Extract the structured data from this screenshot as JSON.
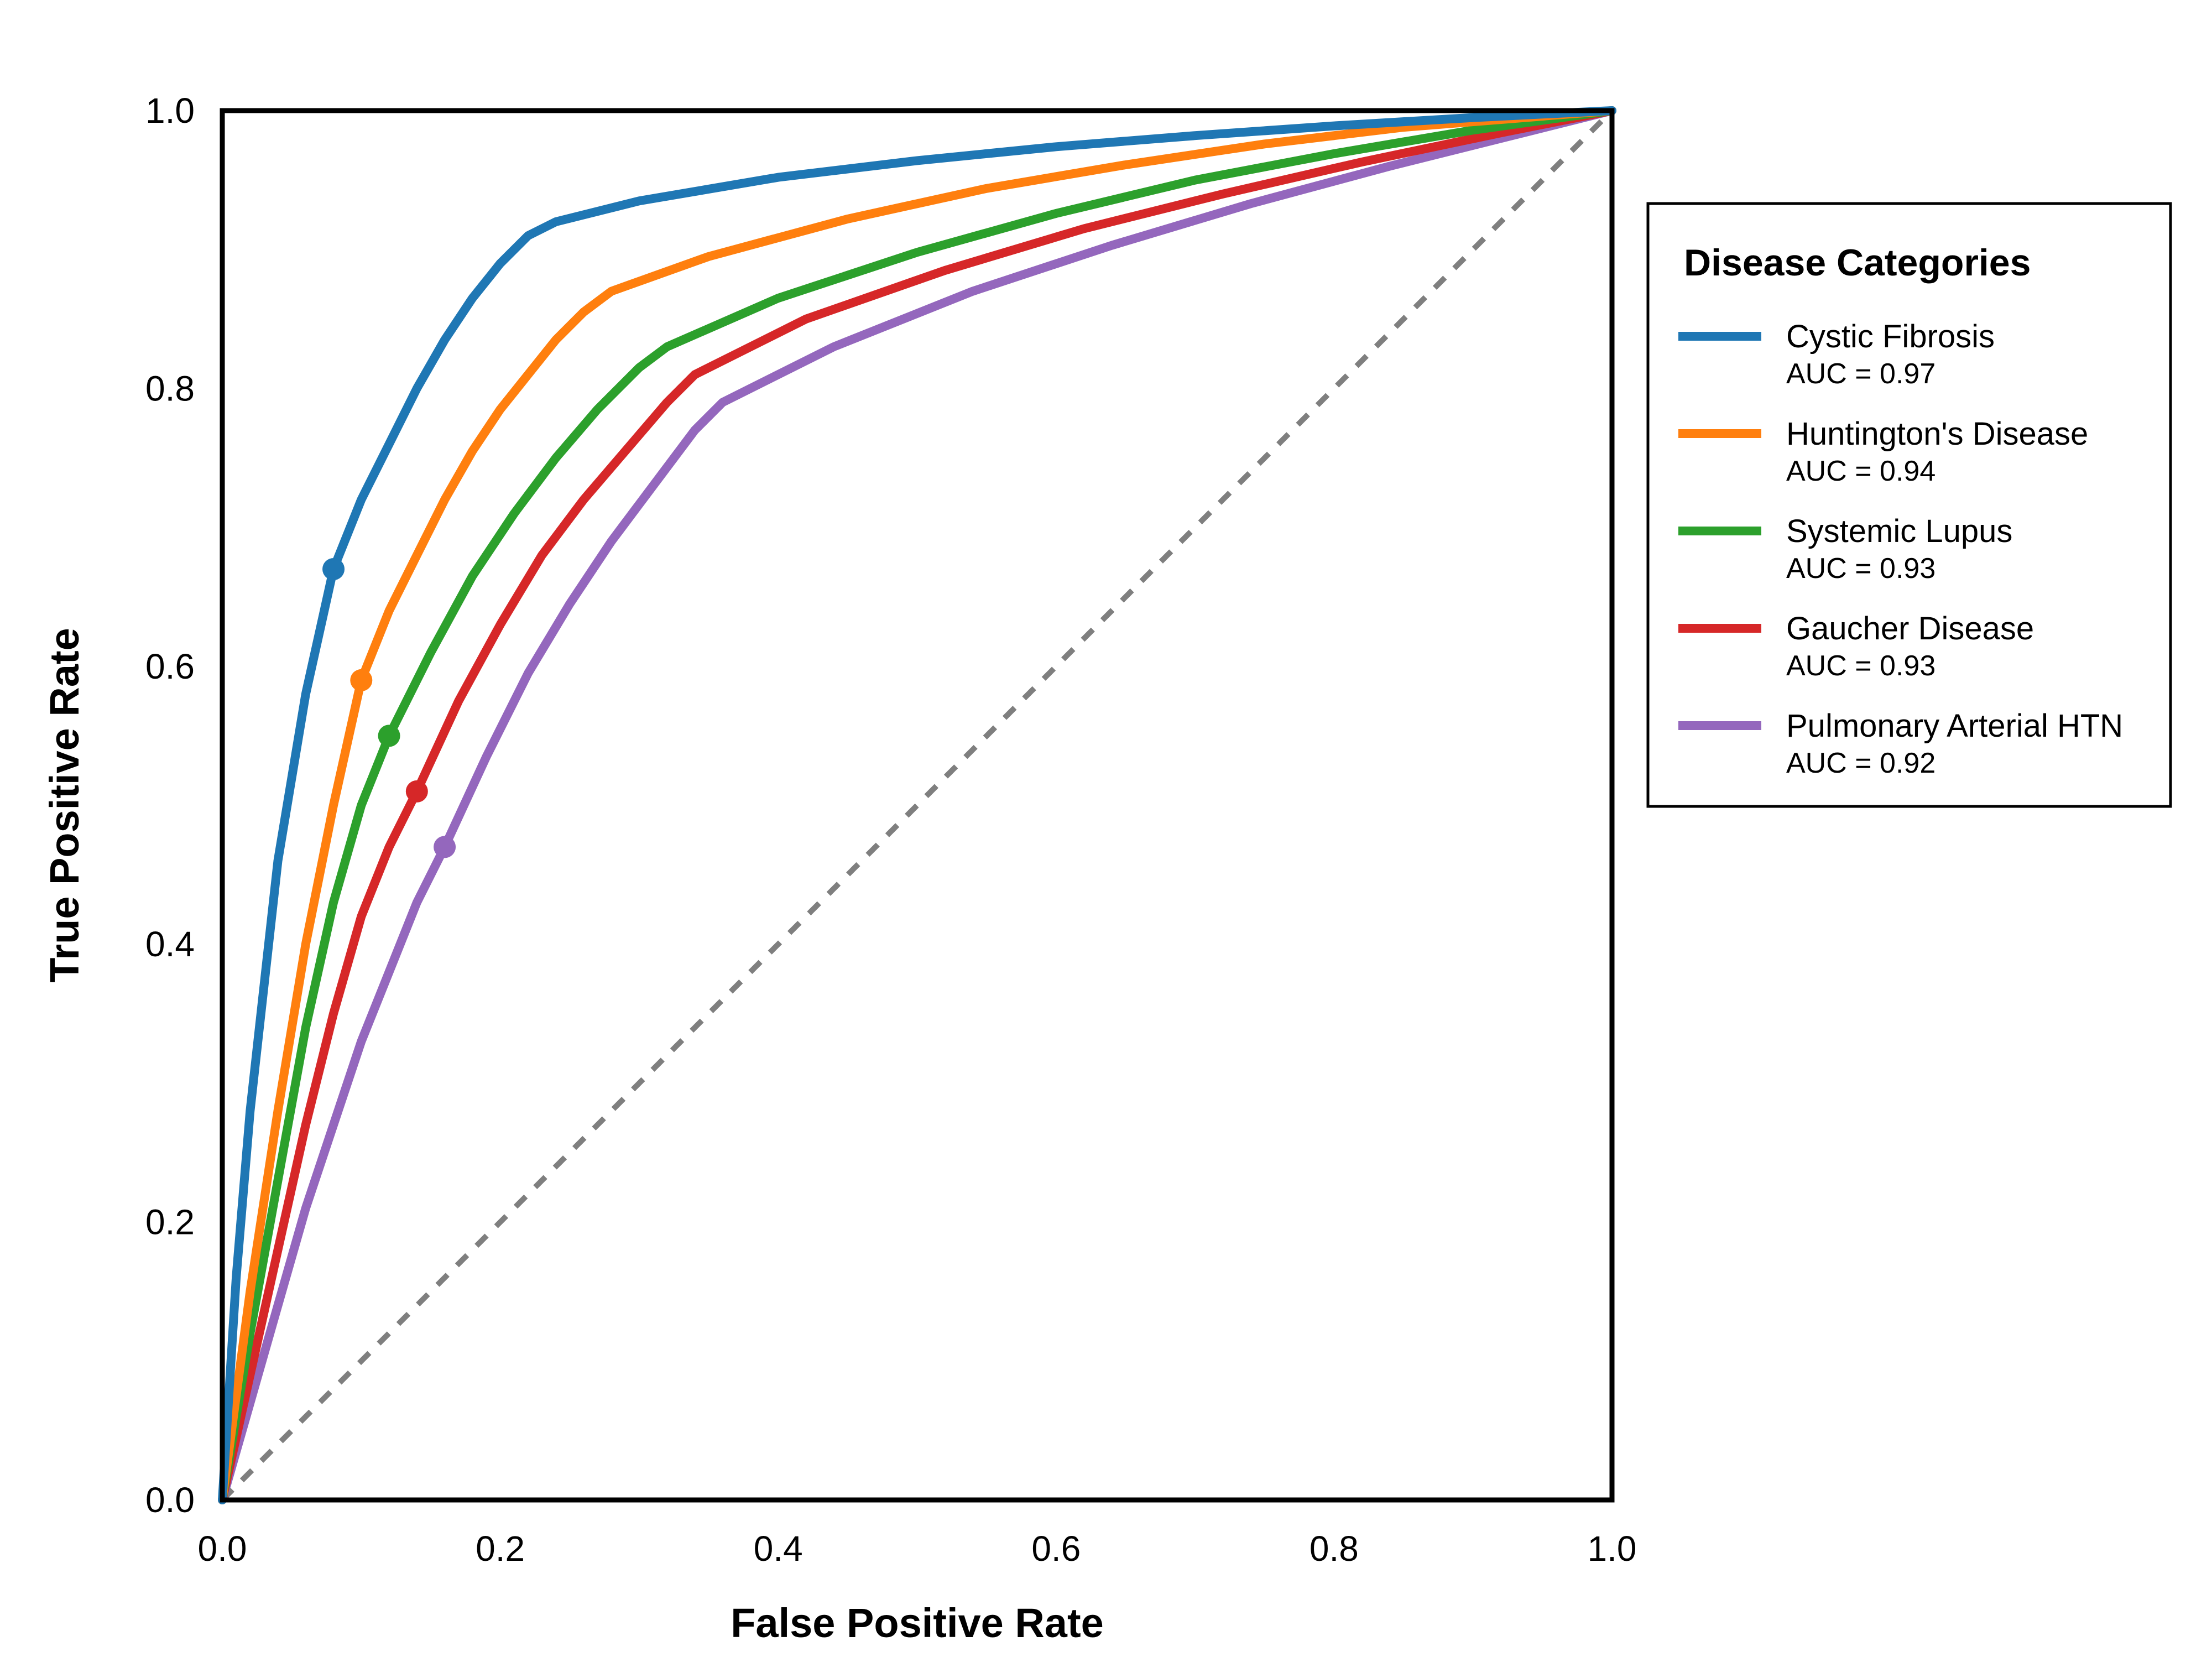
{
  "chart_data": {
    "type": "line",
    "title": "",
    "xlabel": "False Positive Rate",
    "ylabel": "True Positive Rate",
    "xlim": [
      0,
      1
    ],
    "ylim": [
      0,
      1
    ],
    "grid": false,
    "xticks": [
      "0.0",
      "0.2",
      "0.4",
      "0.6",
      "0.8",
      "1.0"
    ],
    "yticks": [
      "0.0",
      "0.2",
      "0.4",
      "0.6",
      "0.8",
      "1.0"
    ],
    "tick_values": [
      0,
      0.2,
      0.4,
      0.6,
      0.8,
      1.0
    ],
    "legend": {
      "title": "Disease Categories",
      "placement": "right-outside"
    },
    "reference_line": {
      "name": "chance-diagonal",
      "x": [
        0,
        1
      ],
      "y": [
        0,
        1
      ],
      "style": "dashed",
      "color": "#7f7f7f"
    },
    "series": [
      {
        "name": "Cystic Fibrosis",
        "auc_label": "AUC = 0.97",
        "color": "#1f77b4",
        "x": [
          0,
          0.01,
          0.02,
          0.04,
          0.06,
          0.08,
          0.1,
          0.12,
          0.14,
          0.16,
          0.18,
          0.2,
          0.22,
          0.24,
          0.3,
          0.4,
          0.5,
          0.6,
          0.7,
          0.8,
          0.9,
          1.0
        ],
        "y": [
          0,
          0.16,
          0.28,
          0.46,
          0.58,
          0.67,
          0.72,
          0.76,
          0.8,
          0.835,
          0.865,
          0.89,
          0.91,
          0.92,
          0.935,
          0.952,
          0.964,
          0.974,
          0.982,
          0.989,
          0.995,
          1.0
        ],
        "marker": {
          "x": 0.08,
          "y": 0.67
        }
      },
      {
        "name": "Huntington's Disease",
        "auc_label": "AUC = 0.94",
        "color": "#ff7f0e",
        "x": [
          0,
          0.02,
          0.04,
          0.06,
          0.08,
          0.1,
          0.12,
          0.14,
          0.16,
          0.18,
          0.2,
          0.22,
          0.24,
          0.26,
          0.28,
          0.35,
          0.45,
          0.55,
          0.65,
          0.75,
          0.85,
          1.0
        ],
        "y": [
          0,
          0.15,
          0.28,
          0.4,
          0.5,
          0.59,
          0.64,
          0.68,
          0.72,
          0.755,
          0.785,
          0.81,
          0.835,
          0.855,
          0.87,
          0.895,
          0.922,
          0.944,
          0.961,
          0.976,
          0.988,
          1.0
        ],
        "marker": {
          "x": 0.1,
          "y": 0.59
        }
      },
      {
        "name": "Systemic Lupus",
        "auc_label": "AUC = 0.93",
        "color": "#2ca02c",
        "x": [
          0,
          0.02,
          0.04,
          0.06,
          0.08,
          0.1,
          0.12,
          0.15,
          0.18,
          0.21,
          0.24,
          0.27,
          0.3,
          0.32,
          0.4,
          0.5,
          0.6,
          0.7,
          0.8,
          0.9,
          1.0
        ],
        "y": [
          0,
          0.12,
          0.23,
          0.34,
          0.43,
          0.5,
          0.55,
          0.61,
          0.665,
          0.71,
          0.75,
          0.785,
          0.815,
          0.83,
          0.865,
          0.898,
          0.926,
          0.95,
          0.969,
          0.986,
          1.0
        ],
        "marker": {
          "x": 0.12,
          "y": 0.55
        }
      },
      {
        "name": "Gaucher Disease",
        "auc_label": "AUC = 0.93",
        "color": "#d62728",
        "x": [
          0,
          0.02,
          0.04,
          0.06,
          0.08,
          0.1,
          0.12,
          0.14,
          0.17,
          0.2,
          0.23,
          0.26,
          0.29,
          0.32,
          0.34,
          0.42,
          0.52,
          0.62,
          0.72,
          0.82,
          0.92,
          1.0
        ],
        "y": [
          0,
          0.09,
          0.18,
          0.27,
          0.35,
          0.42,
          0.47,
          0.51,
          0.575,
          0.63,
          0.68,
          0.72,
          0.755,
          0.79,
          0.81,
          0.85,
          0.885,
          0.915,
          0.94,
          0.963,
          0.984,
          1.0
        ],
        "marker": {
          "x": 0.14,
          "y": 0.51
        }
      },
      {
        "name": "Pulmonary Arterial HTN",
        "auc_label": "AUC = 0.92",
        "color": "#9467bd",
        "x": [
          0,
          0.02,
          0.04,
          0.06,
          0.08,
          0.1,
          0.12,
          0.14,
          0.16,
          0.19,
          0.22,
          0.25,
          0.28,
          0.31,
          0.34,
          0.36,
          0.44,
          0.54,
          0.64,
          0.74,
          0.84,
          0.94,
          1.0
        ],
        "y": [
          0,
          0.07,
          0.14,
          0.21,
          0.27,
          0.33,
          0.38,
          0.43,
          0.47,
          0.535,
          0.595,
          0.645,
          0.69,
          0.73,
          0.77,
          0.79,
          0.83,
          0.87,
          0.903,
          0.933,
          0.96,
          0.985,
          1.0
        ],
        "marker": {
          "x": 0.16,
          "y": 0.47
        }
      }
    ]
  }
}
